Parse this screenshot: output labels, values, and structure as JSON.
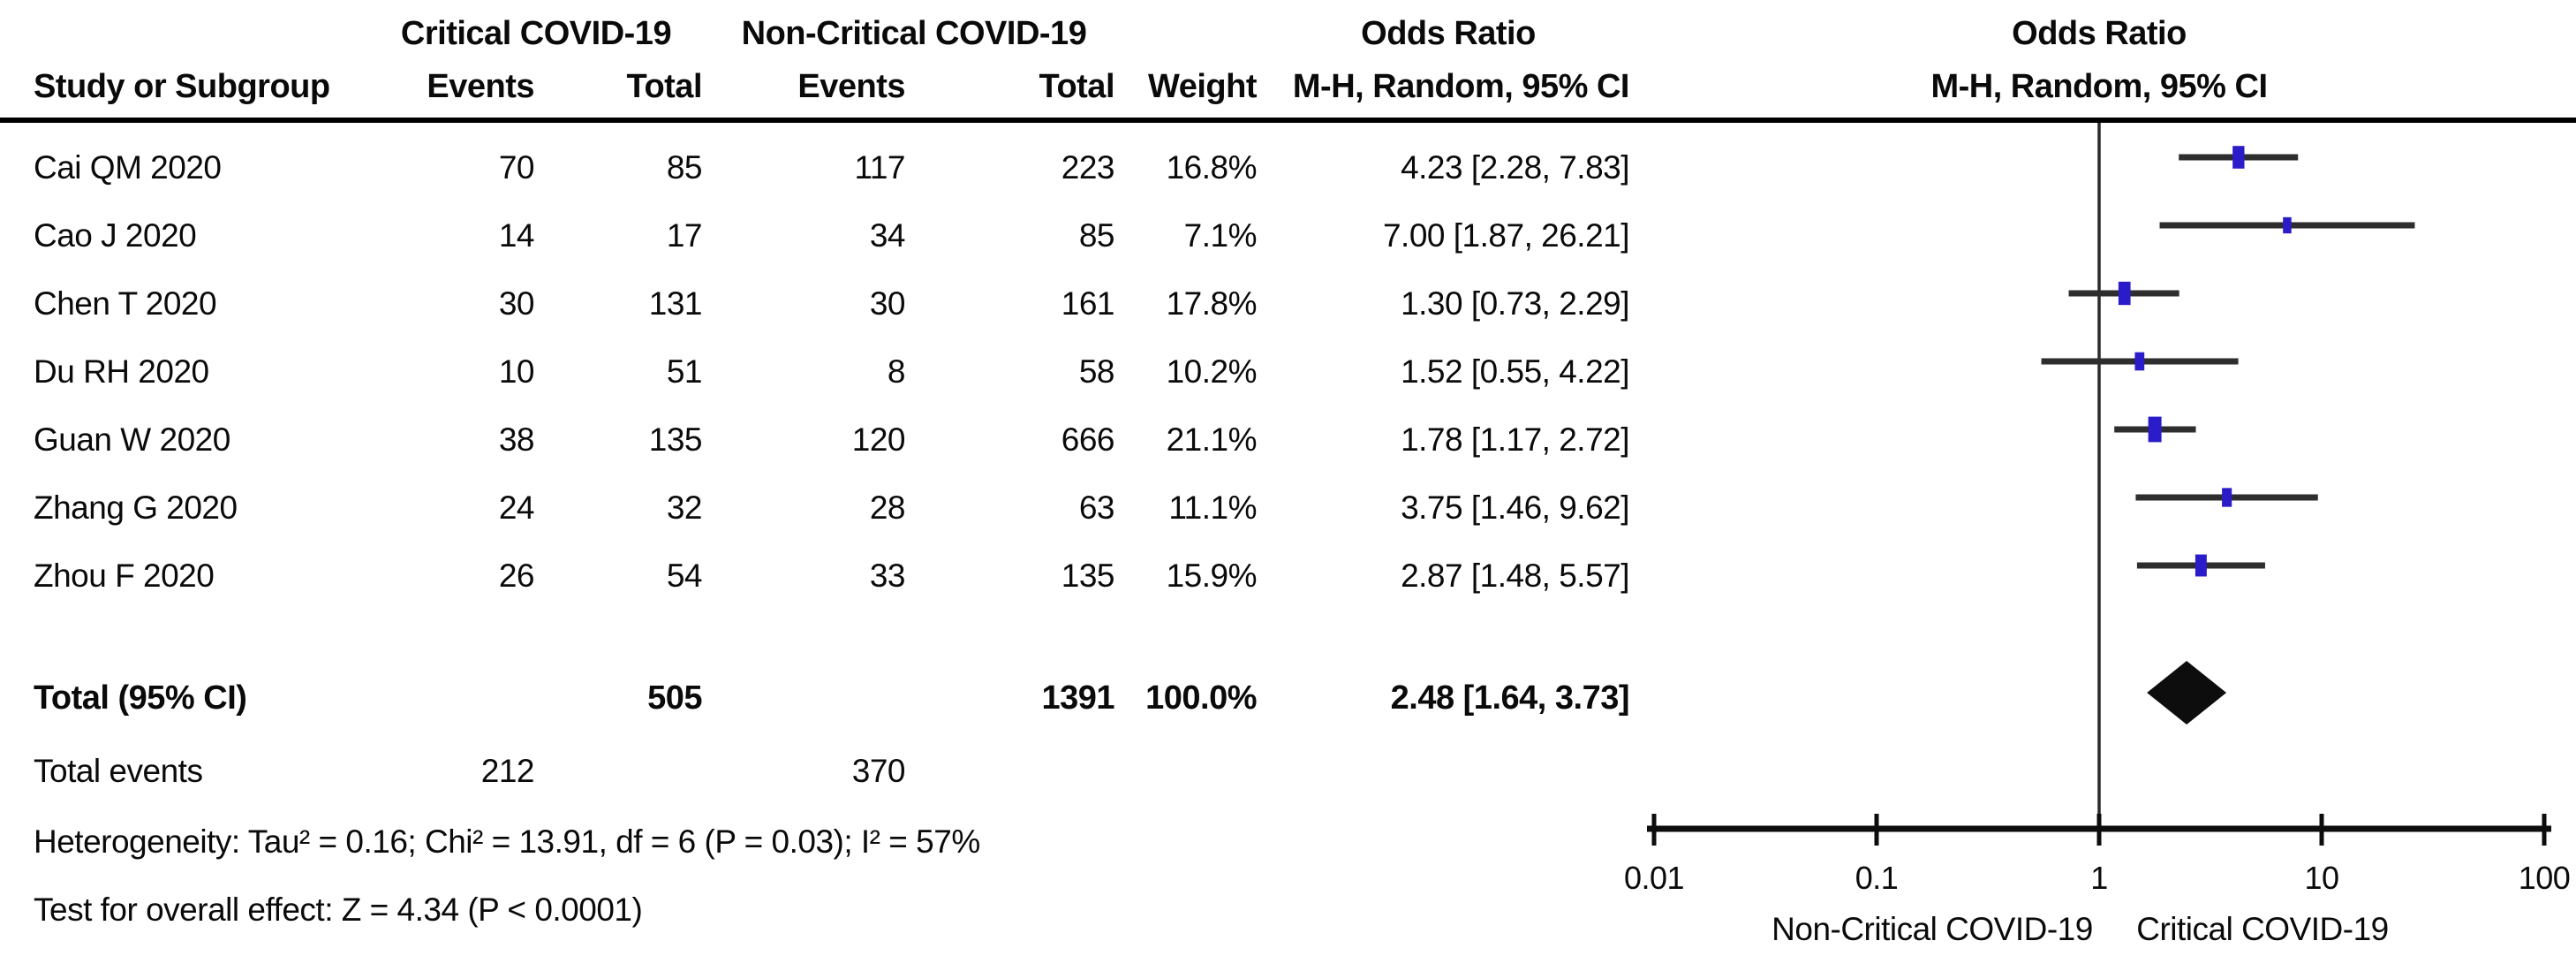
{
  "colors": {
    "background": "#ffffff",
    "text": "#0a0a0a",
    "marker_blue": "#2a1cc8",
    "ci_line": "#2e2e2e",
    "diamond": "#0d0d0d",
    "axis": "#0d0d0d",
    "rule": "#000000",
    "reference_line": "#2b2b2b"
  },
  "header": {
    "group_critical": "Critical COVID-19",
    "group_noncritical": "Non-Critical COVID-19",
    "odds_ratio_text_title": "Odds Ratio",
    "odds_ratio_plot_title": "Odds Ratio",
    "study": "Study or Subgroup",
    "events_critical": "Events",
    "total_critical": "Total",
    "events_noncritical": "Events",
    "total_noncritical": "Total",
    "weight": "Weight",
    "method_text": "M-H, Random, 95% CI",
    "method_plot": "M-H, Random, 95% CI"
  },
  "rows": [
    {
      "study": "Cai QM 2020",
      "events1": "70",
      "total1": "85",
      "events2": "117",
      "total2": "223",
      "weight": "16.8%",
      "or_ci": "4.23 [2.28, 7.83]",
      "or": 4.23,
      "lo": 2.28,
      "hi": 7.83,
      "weight_val": 16.8
    },
    {
      "study": "Cao J 2020",
      "events1": "14",
      "total1": "17",
      "events2": "34",
      "total2": "85",
      "weight": "7.1%",
      "or_ci": "7.00 [1.87, 26.21]",
      "or": 7.0,
      "lo": 1.87,
      "hi": 26.21,
      "weight_val": 7.1
    },
    {
      "study": "Chen T 2020",
      "events1": "30",
      "total1": "131",
      "events2": "30",
      "total2": "161",
      "weight": "17.8%",
      "or_ci": "1.30 [0.73, 2.29]",
      "or": 1.3,
      "lo": 0.73,
      "hi": 2.29,
      "weight_val": 17.8
    },
    {
      "study": "Du RH 2020",
      "events1": "10",
      "total1": "51",
      "events2": "8",
      "total2": "58",
      "weight": "10.2%",
      "or_ci": "1.52 [0.55, 4.22]",
      "or": 1.52,
      "lo": 0.55,
      "hi": 4.22,
      "weight_val": 10.2
    },
    {
      "study": "Guan W 2020",
      "events1": "38",
      "total1": "135",
      "events2": "120",
      "total2": "666",
      "weight": "21.1%",
      "or_ci": "1.78 [1.17, 2.72]",
      "or": 1.78,
      "lo": 1.17,
      "hi": 2.72,
      "weight_val": 21.1
    },
    {
      "study": "Zhang G 2020",
      "events1": "24",
      "total1": "32",
      "events2": "28",
      "total2": "63",
      "weight": "11.1%",
      "or_ci": "3.75 [1.46, 9.62]",
      "or": 3.75,
      "lo": 1.46,
      "hi": 9.62,
      "weight_val": 11.1
    },
    {
      "study": "Zhou F 2020",
      "events1": "26",
      "total1": "54",
      "events2": "33",
      "total2": "135",
      "weight": "15.9%",
      "or_ci": "2.87 [1.48, 5.57]",
      "or": 2.87,
      "lo": 1.48,
      "hi": 5.57,
      "weight_val": 15.9
    }
  ],
  "totals": {
    "label": "Total (95% CI)",
    "total1": "505",
    "total2": "1391",
    "weight": "100.0%",
    "or_ci": "2.48 [1.64, 3.73]",
    "or": 2.48,
    "lo": 1.64,
    "hi": 3.73,
    "events_label": "Total events",
    "events1": "212",
    "events2": "370"
  },
  "stats": {
    "heterogeneity": "Heterogeneity: Tau² = 0.16; Chi² = 13.91, df = 6 (P = 0.03); I² = 57%",
    "overall_effect": "Test for overall effect: Z = 4.34 (P < 0.0001)"
  },
  "axis": {
    "ticks": [
      {
        "v": 0.01,
        "label": "0.01"
      },
      {
        "v": 0.1,
        "label": "0.1"
      },
      {
        "v": 1,
        "label": "1"
      },
      {
        "v": 10,
        "label": "10"
      },
      {
        "v": 100,
        "label": "100"
      }
    ],
    "left_label": "Non-Critical COVID-19",
    "right_label": "Critical COVID-19"
  },
  "chart_data": {
    "type": "scatter",
    "subtype": "forest-plot-odds-ratio",
    "effect_measure": "Odds Ratio, M-H, Random, 95% CI",
    "x_scale": "log10",
    "xlim": [
      0.01,
      100
    ],
    "x_ticks": [
      0.01,
      0.1,
      1,
      10,
      100
    ],
    "x_axis_labels": {
      "left": "Non-Critical COVID-19",
      "right": "Critical COVID-19"
    },
    "studies": [
      {
        "name": "Cai QM 2020",
        "or": 4.23,
        "ci_low": 2.28,
        "ci_high": 7.83,
        "weight_pct": 16.8,
        "events_critical": 70,
        "total_critical": 85,
        "events_noncritical": 117,
        "total_noncritical": 223
      },
      {
        "name": "Cao J 2020",
        "or": 7.0,
        "ci_low": 1.87,
        "ci_high": 26.21,
        "weight_pct": 7.1,
        "events_critical": 14,
        "total_critical": 17,
        "events_noncritical": 34,
        "total_noncritical": 85
      },
      {
        "name": "Chen T 2020",
        "or": 1.3,
        "ci_low": 0.73,
        "ci_high": 2.29,
        "weight_pct": 17.8,
        "events_critical": 30,
        "total_critical": 131,
        "events_noncritical": 30,
        "total_noncritical": 161
      },
      {
        "name": "Du RH 2020",
        "or": 1.52,
        "ci_low": 0.55,
        "ci_high": 4.22,
        "weight_pct": 10.2,
        "events_critical": 10,
        "total_critical": 51,
        "events_noncritical": 8,
        "total_noncritical": 58
      },
      {
        "name": "Guan W 2020",
        "or": 1.78,
        "ci_low": 1.17,
        "ci_high": 2.72,
        "weight_pct": 21.1,
        "events_critical": 38,
        "total_critical": 135,
        "events_noncritical": 120,
        "total_noncritical": 666
      },
      {
        "name": "Zhang G 2020",
        "or": 3.75,
        "ci_low": 1.46,
        "ci_high": 9.62,
        "weight_pct": 11.1,
        "events_critical": 24,
        "total_critical": 32,
        "events_noncritical": 28,
        "total_noncritical": 63
      },
      {
        "name": "Zhou F 2020",
        "or": 2.87,
        "ci_low": 1.48,
        "ci_high": 5.57,
        "weight_pct": 15.9,
        "events_critical": 26,
        "total_critical": 54,
        "events_noncritical": 33,
        "total_noncritical": 135
      }
    ],
    "summary": {
      "label": "Total (95% CI)",
      "or": 2.48,
      "ci_low": 1.64,
      "ci_high": 3.73,
      "weight_pct": 100.0,
      "total_critical": 505,
      "total_noncritical": 1391,
      "total_events_critical": 212,
      "total_events_noncritical": 370
    },
    "heterogeneity": {
      "tau2": 0.16,
      "chi2": 13.91,
      "df": 6,
      "p": 0.03,
      "i2_pct": 57
    },
    "overall_effect": {
      "z": 4.34,
      "p": "< 0.0001"
    }
  }
}
